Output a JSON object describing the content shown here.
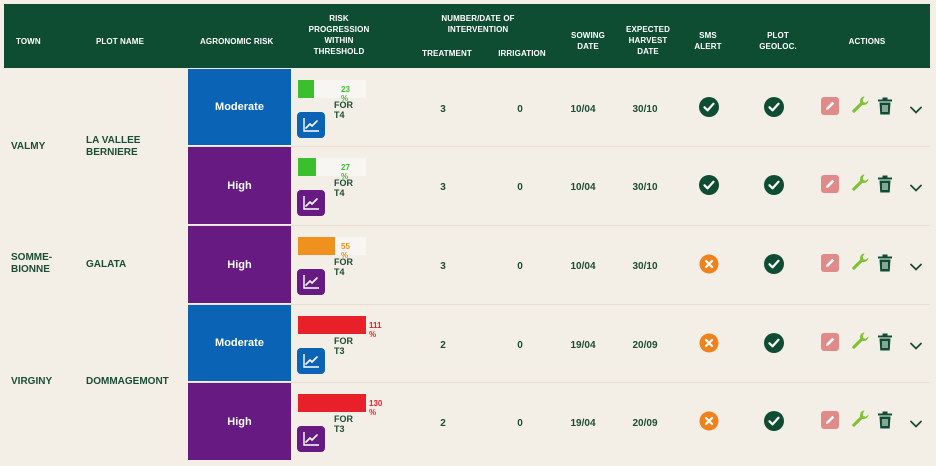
{
  "header": {
    "town": "TOWN",
    "plot_name": "PLOT NAME",
    "agronomic_risk": "AGRONOMIC RISK",
    "risk_progression": [
      "RISK",
      "PROGRESSION",
      "WITHIN",
      "THRESHOLD"
    ],
    "intervention": [
      "NUMBER/DATE OF",
      "INTERVENTION"
    ],
    "treatment": "TREATMENT",
    "irrigation": "IRRIGATION",
    "sowing_date": [
      "SOWING",
      "DATE"
    ],
    "harvest_date": [
      "EXPECTED",
      "HARVEST",
      "DATE"
    ],
    "sms_alert": [
      "SMS",
      "ALERT"
    ],
    "plot_geoloc": [
      "PLOT",
      "GEOLOC."
    ],
    "actions": "ACTIONS"
  },
  "locations": [
    {
      "town": [
        "VALMY"
      ],
      "plot": [
        "LA VALLEE",
        "BERNIERE"
      ]
    },
    {
      "town": [
        "SOMME-",
        "BIONNE"
      ],
      "plot": [
        "GALATA"
      ]
    },
    {
      "town": [
        "VIRGINY"
      ],
      "plot": [
        "DOMMAGEMONT"
      ]
    }
  ],
  "rows": [
    {
      "risk": "Moderate",
      "risk_level": "moderate",
      "progress_pct": 23,
      "progress_label": "23 %",
      "progress_color": "#3cbf2f",
      "for_label": "FOR T4",
      "treatment": "3",
      "irrigation": "0",
      "sowing": "10/04",
      "harvest": "30/10",
      "sms_alert": "ok",
      "geoloc": "ok"
    },
    {
      "risk": "High",
      "risk_level": "high",
      "progress_pct": 27,
      "progress_label": "27 %",
      "progress_color": "#3cbf2f",
      "for_label": "FOR T4",
      "treatment": "3",
      "irrigation": "0",
      "sowing": "10/04",
      "harvest": "30/10",
      "sms_alert": "ok",
      "geoloc": "ok"
    },
    {
      "risk": "High",
      "risk_level": "high",
      "progress_pct": 55,
      "progress_label": "55 %",
      "progress_color": "#f0901e",
      "for_label": "FOR T4",
      "treatment": "3",
      "irrigation": "0",
      "sowing": "10/04",
      "harvest": "30/10",
      "sms_alert": "off",
      "geoloc": "ok"
    },
    {
      "risk": "Moderate",
      "risk_level": "moderate",
      "progress_pct": 111,
      "progress_label": "111 %",
      "progress_color": "#e8202a",
      "for_label": "FOR T3",
      "treatment": "2",
      "irrigation": "0",
      "sowing": "19/04",
      "harvest": "20/09",
      "sms_alert": "off",
      "geoloc": "ok"
    },
    {
      "risk": "High",
      "risk_level": "high",
      "progress_pct": 130,
      "progress_label": "130 %",
      "progress_color": "#e8202a",
      "for_label": "FOR T3",
      "treatment": "2",
      "irrigation": "0",
      "sowing": "19/04",
      "harvest": "20/09",
      "sms_alert": "off",
      "geoloc": "ok"
    }
  ],
  "colors": {
    "header_bg": "#0f4d32",
    "moderate": "#0a63b4",
    "high": "#661a82",
    "ok_icon": "#0f4d32",
    "off_icon": "#f0821e",
    "edit_icon": "#e08a8a",
    "wrench_icon": "#7cc234",
    "trash_icon": "#0f4d32"
  },
  "icons": {
    "chart": "line-chart-icon",
    "ok": "check-circle-icon",
    "off": "x-circle-icon",
    "edit": "pencil-icon",
    "settings": "wrench-icon",
    "delete": "trash-icon",
    "expand": "chevron-down-icon"
  }
}
